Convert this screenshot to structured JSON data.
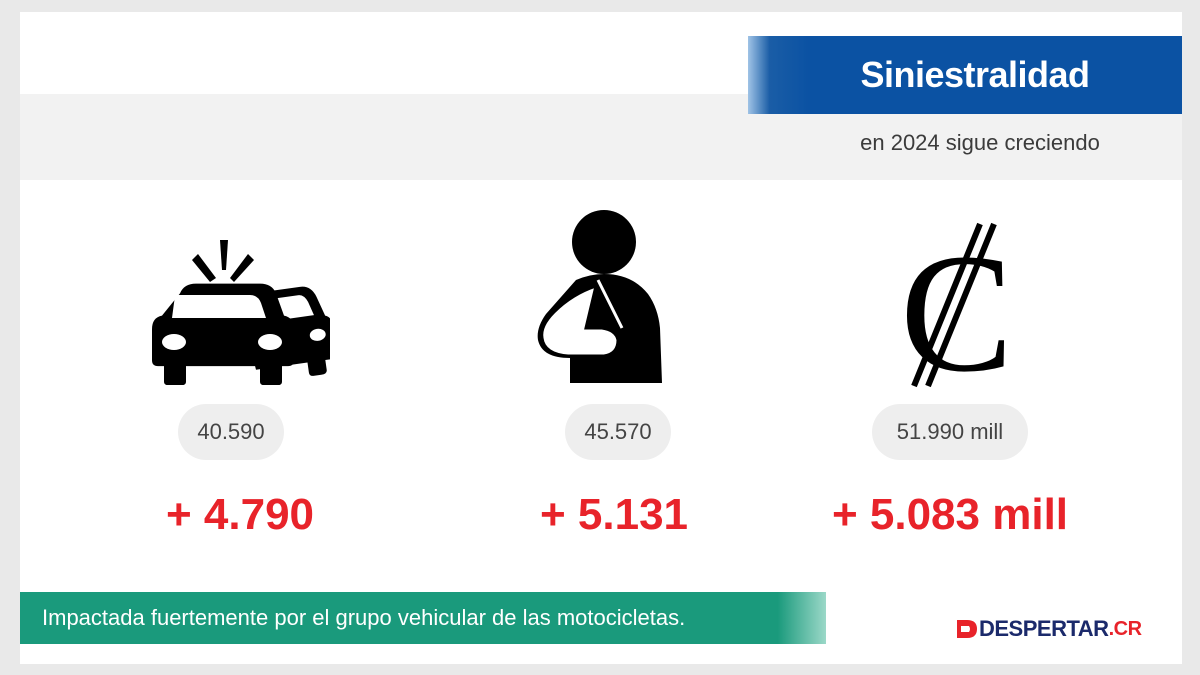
{
  "header": {
    "title": "Siniestralidad",
    "subtitle": "en 2024 sigue creciendo"
  },
  "stats": [
    {
      "icon": "car-crash-icon",
      "value": "40.590",
      "delta": "+ 4.790"
    },
    {
      "icon": "injured-person-icon",
      "value": "45.570",
      "delta": "+ 5.131"
    },
    {
      "icon": "colon-currency-icon",
      "value": "51.990 mill",
      "delta": "+ 5.083 mill"
    }
  ],
  "footer": {
    "note": "Impactada fuertemente por el grupo vehicular de las motocicletas."
  },
  "logo": {
    "name": "DESPERTAR",
    "suffix": ".CR"
  },
  "colors": {
    "title_bg": "#0b52a3",
    "delta_red": "#e8232a",
    "footer_green": "#1a9a7c"
  }
}
